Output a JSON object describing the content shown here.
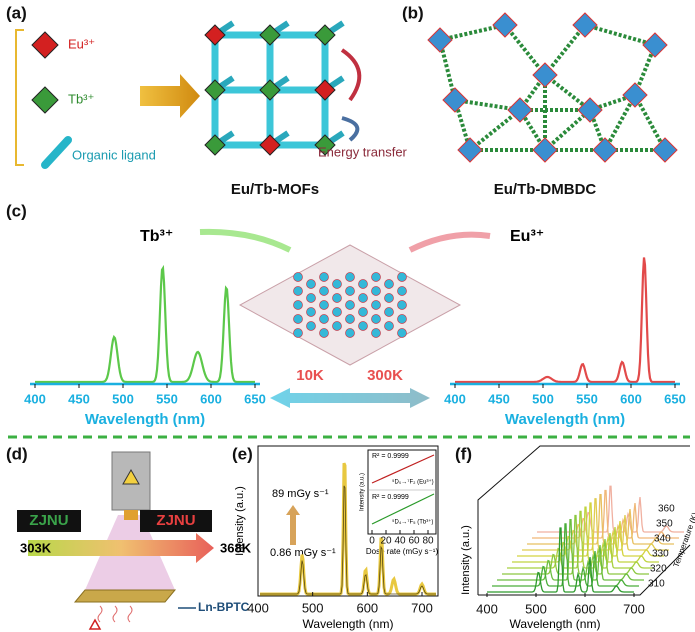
{
  "panel_a": {
    "label": "(a)",
    "eu": "Eu³⁺",
    "tb": "Tb³⁺",
    "ligand": "Organic ligand",
    "transfer": "Energy transfer",
    "caption": "Eu/Tb-MOFs"
  },
  "panel_b": {
    "label": "(b)",
    "caption": "Eu/Tb-DMBDC"
  },
  "panel_c": {
    "label": "(c)",
    "tb": "Tb³⁺",
    "eu": "Eu³⁺",
    "low": "10K",
    "high": "300K",
    "xlabel": "Wavelength (nm)",
    "xticks": [
      400,
      450,
      500,
      550,
      600,
      650
    ]
  },
  "panel_d": {
    "label": "(d)",
    "sign": "ZJNU",
    "t_low": "303K",
    "t_high": "368K",
    "sample": "Ln-BPTC"
  },
  "panel_e": {
    "label": "(e)",
    "dose_high": "89 mGy s⁻¹",
    "dose_low": "0.86 mGy s⁻¹",
    "ylabel": "Intensity (a.u.)",
    "xlabel": "Wavelength (nm)",
    "xticks": [
      400,
      500,
      600,
      700
    ],
    "inset": {
      "r2": [
        "R² = 0.9999",
        "R² = 0.9999"
      ],
      "eu_line": "⁵D₀→⁷F₂ (Eu³⁺)",
      "tb_line": "⁵D₄→⁷F₅ (Tb³⁺)",
      "ylabel": "Intensity (a.u.)",
      "xlabel": "Dose rate (mGy s⁻¹)",
      "xticks": [
        0,
        20,
        40,
        60,
        80
      ]
    }
  },
  "panel_f": {
    "label": "(f)",
    "ylabel": "Intensity (a.u.)",
    "xlabel": "Wavelength (nm)",
    "xticks": [
      400,
      500,
      600,
      700
    ],
    "tlabel": "Temperature (K)",
    "tticks": [
      310,
      320,
      330,
      340,
      350,
      360
    ]
  }
}
